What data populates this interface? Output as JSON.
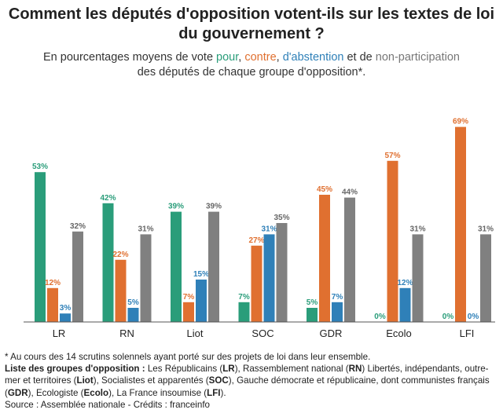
{
  "title_line1": "Comment les députés d'opposition votent-ils sur les textes de loi",
  "title_line2": "du gouvernement ?",
  "subtitle": {
    "prefix": "En pourcentages moyens de vote ",
    "pour": "pour",
    "sep1": ", ",
    "contre": "contre",
    "sep2": ", ",
    "abstention": "d'abstention",
    "sep3": " et de ",
    "nonparticipation": "non-participation",
    "line2": "des députés de chaque groupe d'opposition*."
  },
  "colors": {
    "pour": "#2a9d7a",
    "contre": "#e07030",
    "abstention": "#2f80b8",
    "nonparticipation": "#808080"
  },
  "chart_data": {
    "type": "bar",
    "title": "Comment les députés d'opposition votent-ils sur les textes de loi du gouvernement ?",
    "xlabel": "",
    "ylabel": "",
    "ylim": [
      0,
      70
    ],
    "categories": [
      "LR",
      "RN",
      "Liot",
      "SOC",
      "GDR",
      "Ecolo",
      "LFI"
    ],
    "series": [
      {
        "name": "pour",
        "values": [
          53,
          42,
          39,
          7,
          5,
          0,
          0
        ]
      },
      {
        "name": "contre",
        "values": [
          12,
          22,
          7,
          27,
          45,
          57,
          69
        ]
      },
      {
        "name": "abstention",
        "values": [
          3,
          5,
          15,
          31,
          7,
          12,
          0
        ]
      },
      {
        "name": "non-participation",
        "values": [
          32,
          31,
          39,
          35,
          44,
          31,
          31
        ]
      }
    ],
    "data_labels": [
      [
        "53%",
        "12%",
        "3%",
        "32%"
      ],
      [
        "42%",
        "22%",
        "5%",
        "31%"
      ],
      [
        "39%",
        "7%",
        "15%",
        "39%"
      ],
      [
        "7%",
        "27%",
        "31%",
        "35%"
      ],
      [
        "5%",
        "45%",
        "7%",
        "44%"
      ],
      [
        "0%",
        "57%",
        "12%",
        "31%"
      ],
      [
        "0%",
        "69%",
        "0%",
        "31%"
      ]
    ],
    "label_shown": [
      [
        true,
        true,
        true,
        true
      ],
      [
        true,
        true,
        true,
        true
      ],
      [
        true,
        true,
        true,
        true
      ],
      [
        true,
        true,
        true,
        true
      ],
      [
        true,
        true,
        true,
        true
      ],
      [
        true,
        true,
        true,
        true
      ],
      [
        true,
        true,
        true,
        true
      ]
    ]
  },
  "notes": {
    "footnote": "* Au cours des 14 scrutins solennels ayant porté sur des projets de loi dans leur ensemble.",
    "list_label": "Liste des groupes d'opposition :",
    "list_parts": [
      " Les Républicains (",
      "LR",
      "), Rassemblement national (",
      "RN",
      ") Libertés, indépendants, outre-mer et territoires (",
      "Liot",
      "), Socialistes et apparentés (",
      "SOC",
      "), Gauche démocrate et républicaine, dont communistes français (",
      "GDR",
      "), Ecologiste (",
      "Ecolo",
      "), La France insoumise (",
      "LFI",
      ")."
    ],
    "source": "Source : Assemblée nationale - Crédits : franceinfo"
  }
}
